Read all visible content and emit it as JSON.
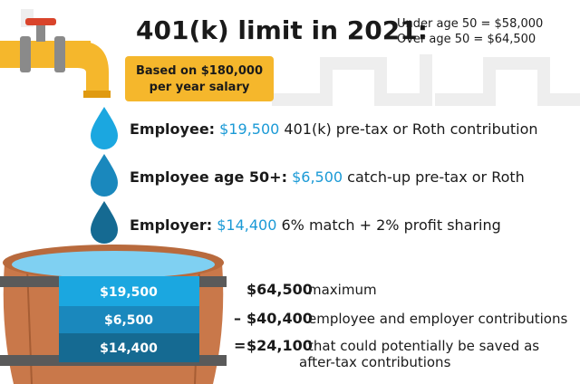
{
  "header": {
    "title": "401(k) limit in 2021:",
    "limits": [
      "Under age 50 = $58,000",
      "Over age 50 = $64,500"
    ]
  },
  "badge": {
    "lines": [
      "Based on $180,000",
      "per year salary"
    ]
  },
  "contributions": [
    {
      "label": "Employee:",
      "amount": "$19,500",
      "description": "401(k) pre-tax or Roth contribution"
    },
    {
      "label": "Employee age 50+:",
      "amount": "$6,500",
      "description": "catch-up pre-tax or Roth"
    },
    {
      "label": "Employer:",
      "amount": "$14,400",
      "description": "6% match + 2% profit sharing"
    }
  ],
  "barrel": {
    "layers": [
      "$19,500",
      "$6,500",
      "$14,400"
    ]
  },
  "math": [
    {
      "operator": "",
      "amount": "$64,500",
      "text": [
        "maximum"
      ]
    },
    {
      "operator": "–",
      "amount": "$40,400",
      "text": [
        "employee and employer contributions"
      ]
    },
    {
      "operator": "=",
      "amount": "$24,100",
      "text": [
        "that could potentially be saved as",
        "after-tax contributions"
      ]
    }
  ]
}
